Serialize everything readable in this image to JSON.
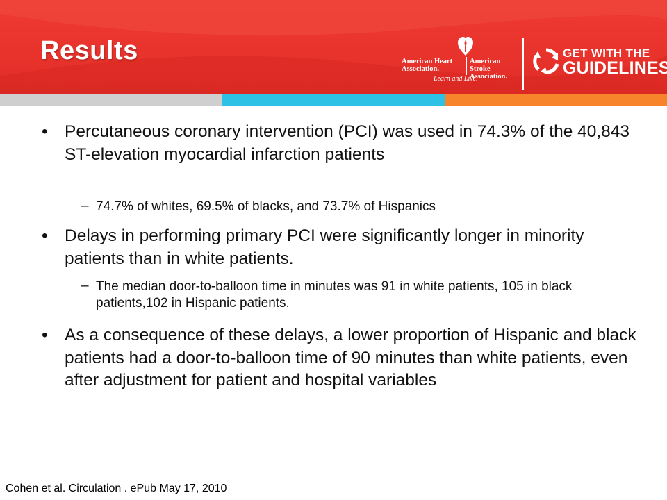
{
  "slide": {
    "title": "Results",
    "colors": {
      "header_red": "#e8332c",
      "bar_gray": "#cfcfcf",
      "bar_blue": "#2ec1e6",
      "bar_orange": "#f7842a"
    }
  },
  "logos": {
    "aha": {
      "left_line1": "American Heart",
      "left_line2": "Association.",
      "right_line1": "American Stroke",
      "right_line2": "Association.",
      "tagline": "Learn and Live.",
      "icon": "heart-torch-icon"
    },
    "gwtg": {
      "line1": "GET WITH THE",
      "line2": "GUIDELINES.",
      "icon": "circular-arrows-icon"
    }
  },
  "bullets": [
    {
      "text": "Percutaneous coronary intervention (PCI) was used in 74.3% of the 40,843 ST-elevation myocardial infarction patients",
      "sub": [
        "74.7% of whites, 69.5% of blacks, and 73.7% of Hispanics"
      ]
    },
    {
      "text": "Delays in performing primary PCI were significantly longer in minority patients than in white patients.",
      "sub": [
        "The median door-to-balloon time in minutes was 91 in white patients, 105 in black patients,102 in Hispanic patients."
      ]
    },
    {
      "text": "As a consequence of these delays, a lower proportion of Hispanic and black patients had a door-to-balloon time of 90 minutes than white patients, even after adjustment for patient and hospital variables",
      "sub": []
    }
  ],
  "citation": "Cohen et al. Circulation . ePub May 17, 2010"
}
